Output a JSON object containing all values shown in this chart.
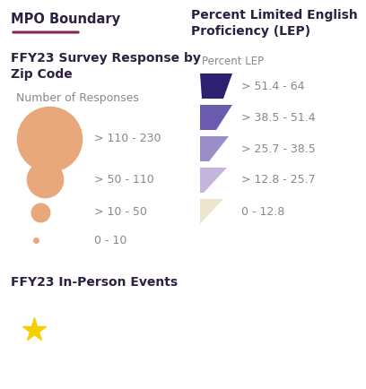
{
  "title_mpo": "MPO Boundary",
  "mpo_line_color": "#8B2252",
  "title_survey": "FFY23 Survey Response by\nZip Code",
  "subtitle_responses": "Number of Responses",
  "circle_labels": [
    "> 110 - 230",
    "> 50 - 110",
    "> 10 - 50",
    "0 - 10"
  ],
  "circle_sizes": [
    2800,
    900,
    250,
    25
  ],
  "circle_color": "#E8A87C",
  "title_lep": "Percent Limited English\nProficiency (LEP)",
  "lep_subtitle": "Percent LEP",
  "lep_labels": [
    "> 51.4 - 64",
    "> 38.5 - 51.4",
    "> 25.7 - 38.5",
    "> 12.8 - 25.7",
    "0 - 12.8"
  ],
  "lep_colors": [
    "#2D2070",
    "#6B5BAE",
    "#9B8DC8",
    "#C4B4DE",
    "#EDE5CC"
  ],
  "title_events": "FFY23 In-Person Events",
  "star_color": "#F5D000",
  "bg_color": "#FFFFFF",
  "text_color": "#2D2040",
  "label_color": "#888888"
}
